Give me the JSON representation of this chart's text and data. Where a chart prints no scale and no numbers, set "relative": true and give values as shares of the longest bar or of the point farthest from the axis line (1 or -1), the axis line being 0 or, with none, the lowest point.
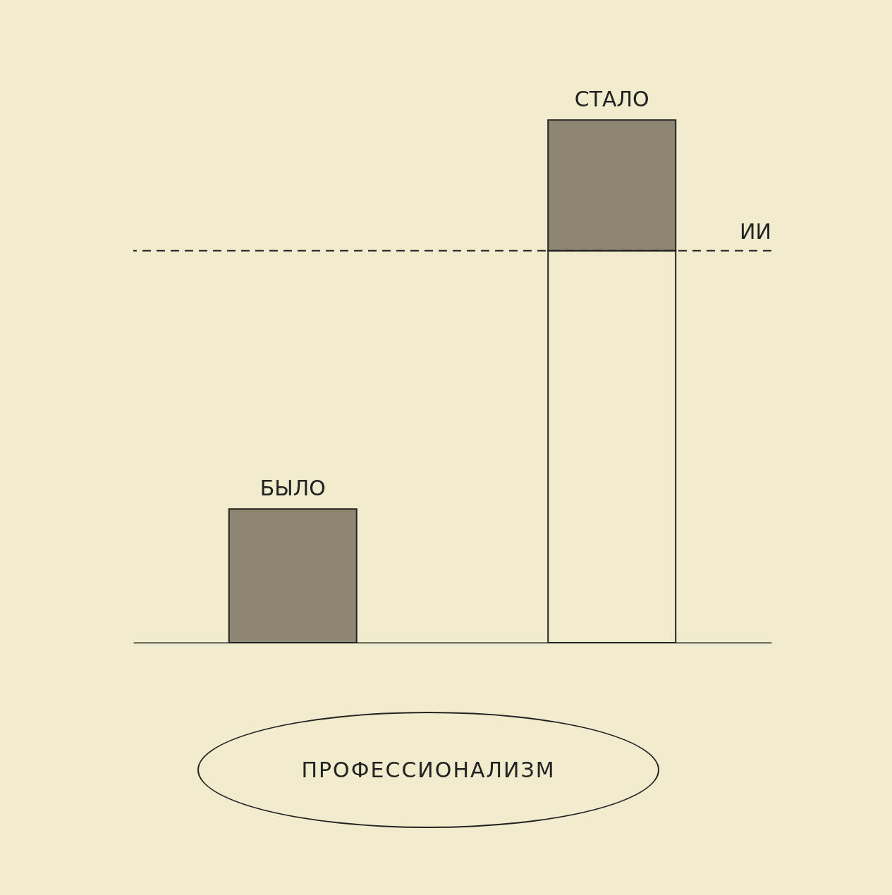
{
  "chart_data": {
    "type": "bar",
    "relative": true,
    "stacked": true,
    "categories": [
      "БЫЛО",
      "СТАЛО"
    ],
    "annotations": [
      "ПРОФЕССИОНАЛИЗМ"
    ],
    "series": [
      {
        "color": "#f2ecce",
        "values": [
          0,
          0.75
        ]
      },
      {
        "color": "#8c8672",
        "values": [
          0.256,
          0.25
        ]
      }
    ],
    "ref_lines": [
      {
        "axis": "y",
        "value": 0.75,
        "label": "ИИ",
        "line_style": "dashed",
        "color": "#222222"
      }
    ]
  }
}
